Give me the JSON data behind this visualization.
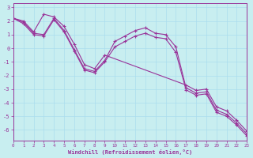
{
  "bg_color": "#c8eef0",
  "grid_color": "#aaddee",
  "line_color": "#993399",
  "xlim": [
    0,
    23
  ],
  "ylim": [
    -6.8,
    3.3
  ],
  "yticks": [
    3,
    2,
    1,
    0,
    -1,
    -2,
    -3,
    -4,
    -5,
    -6
  ],
  "xticks": [
    0,
    1,
    2,
    3,
    4,
    5,
    6,
    7,
    8,
    9,
    10,
    11,
    12,
    13,
    14,
    15,
    16,
    17,
    18,
    19,
    20,
    21,
    22,
    23
  ],
  "xlabel": "Windchill (Refroidissement éolien,°C)",
  "lines": [
    {
      "x": [
        0,
        1,
        2,
        3,
        4,
        5,
        6,
        7,
        8,
        9,
        17,
        18,
        19,
        20,
        21,
        22,
        23
      ],
      "y": [
        2.2,
        2.0,
        1.2,
        2.5,
        2.3,
        1.6,
        0.3,
        -1.2,
        -1.5,
        -0.5,
        -2.7,
        -3.1,
        -3.0,
        -4.3,
        -4.6,
        -5.3,
        -6.1
      ]
    },
    {
      "x": [
        0,
        1,
        2,
        3,
        4,
        5,
        6,
        7,
        8,
        9,
        10,
        11,
        12,
        13,
        14,
        15,
        16,
        17,
        18,
        19,
        20,
        21,
        22,
        23
      ],
      "y": [
        2.2,
        1.9,
        1.1,
        1.0,
        2.2,
        1.3,
        -0.1,
        -1.5,
        -1.7,
        -0.9,
        0.5,
        0.9,
        1.3,
        1.5,
        1.1,
        1.0,
        0.1,
        -2.9,
        -3.3,
        -3.2,
        -4.55,
        -4.85,
        -5.5,
        -6.3
      ]
    },
    {
      "x": [
        0,
        1,
        2,
        3,
        4,
        5,
        6,
        7,
        8,
        9,
        10,
        11,
        12,
        13,
        14,
        15,
        16,
        17,
        18,
        19,
        20,
        21,
        22,
        23
      ],
      "y": [
        2.2,
        1.8,
        1.0,
        0.9,
        2.1,
        1.2,
        -0.2,
        -1.6,
        -1.8,
        -1.0,
        0.1,
        0.5,
        0.9,
        1.1,
        0.8,
        0.7,
        -0.3,
        -3.05,
        -3.45,
        -3.35,
        -4.7,
        -5.0,
        -5.65,
        -6.45
      ]
    }
  ],
  "bump_line": {
    "x": [
      9,
      10,
      11,
      12,
      13,
      14,
      15,
      16,
      17
    ],
    "y": [
      -0.5,
      0.5,
      1.3,
      1.6,
      1.5,
      1.1,
      0.8,
      0.1,
      -2.7
    ]
  }
}
